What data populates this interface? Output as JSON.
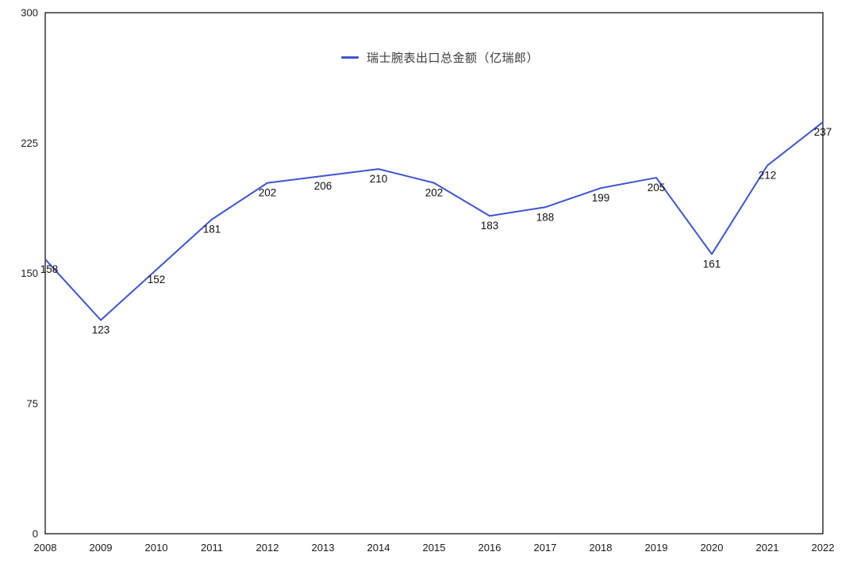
{
  "legend": {
    "label": "瑞士腕表出口总金额（亿瑞郎）"
  },
  "colors": {
    "line": "#3d55d8",
    "axis": "#000000",
    "tick_text": "#1a1a1a",
    "label_text": "#111111",
    "background": "#ffffff"
  },
  "chart_data": {
    "type": "line",
    "title": "",
    "xlabel": "",
    "ylabel": "",
    "categories": [
      "2008",
      "2009",
      "2010",
      "2011",
      "2012",
      "2013",
      "2014",
      "2015",
      "2016",
      "2017",
      "2018",
      "2019",
      "2020",
      "2021",
      "2022"
    ],
    "series": [
      {
        "name": "瑞士腕表出口总金额（亿瑞郎）",
        "values": [
          158,
          123,
          152,
          181,
          202,
          206,
          210,
          202,
          183,
          188,
          199,
          205,
          161,
          212,
          237
        ]
      }
    ],
    "ylim": [
      0,
      300
    ],
    "yticks": [
      0,
      75,
      150,
      225,
      300
    ],
    "grid": false,
    "point_labels": true,
    "legend_position": "top-center",
    "plot_border": true
  }
}
